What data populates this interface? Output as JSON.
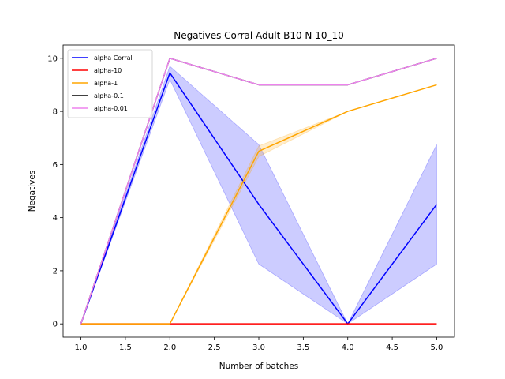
{
  "chart_data": {
    "type": "line",
    "title": "Negatives Corral Adult B10 N 10_10",
    "xlabel": "Number of batches",
    "ylabel": "Negatives",
    "xlim": [
      0.8,
      5.2
    ],
    "ylim": [
      -0.5,
      10.5
    ],
    "xticks": [
      1.0,
      1.5,
      2.0,
      2.5,
      3.0,
      3.5,
      4.0,
      4.5,
      5.0
    ],
    "xtick_labels": [
      "1.0",
      "1.5",
      "2.0",
      "2.5",
      "3.0",
      "3.5",
      "4.0",
      "4.5",
      "5.0"
    ],
    "yticks": [
      0,
      2,
      4,
      6,
      8,
      10
    ],
    "ytick_labels": [
      "0",
      "2",
      "4",
      "6",
      "8",
      "10"
    ],
    "grid": false,
    "legend_position": "top-left",
    "x": [
      1,
      2,
      3,
      4,
      5
    ],
    "series": [
      {
        "name": "alpha Corral",
        "color": "#0000ff",
        "values": [
          0,
          9.45,
          4.5,
          0,
          4.5
        ],
        "band_lower": [
          0,
          9.2,
          2.25,
          0,
          2.25
        ],
        "band_upper": [
          0,
          9.7,
          6.75,
          0,
          6.75
        ]
      },
      {
        "name": "alpha-10",
        "color": "#ff0000",
        "values": [
          0,
          0,
          0,
          0,
          0
        ]
      },
      {
        "name": "alpha-1",
        "color": "#ffa500",
        "values": [
          0,
          0,
          6.5,
          8,
          9
        ],
        "band_lower": [
          0,
          0,
          6.3,
          8,
          9
        ],
        "band_upper": [
          0,
          0,
          6.7,
          8,
          9
        ]
      },
      {
        "name": "alpha-0.1",
        "color": "#000000",
        "values": [
          0,
          10,
          9,
          9,
          10
        ]
      },
      {
        "name": "alpha-0.01",
        "color": "#ee82ee",
        "values": [
          0,
          10,
          9,
          9,
          10
        ]
      }
    ]
  }
}
